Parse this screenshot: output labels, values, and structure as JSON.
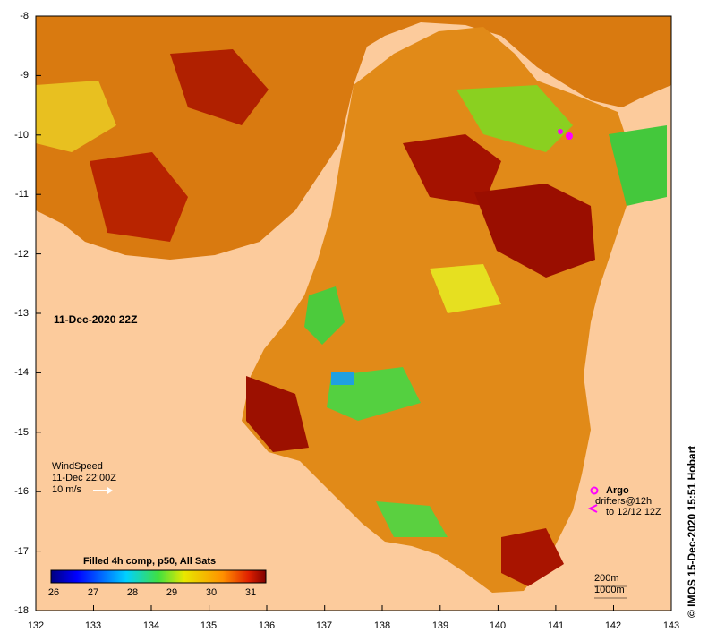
{
  "map": {
    "y_ticks": [
      "-8",
      "-9",
      "-10",
      "-11",
      "-12",
      "-13",
      "-14",
      "-15",
      "-16",
      "-17",
      "-18"
    ],
    "x_ticks": [
      "132",
      "133",
      "134",
      "135",
      "136",
      "137",
      "138",
      "139",
      "140",
      "141",
      "142",
      "143"
    ],
    "date_label": "11-Dec-2020 22Z",
    "wind": {
      "title": "WindSpeed",
      "time": "11-Dec 22:00Z",
      "scale": "10 m/s"
    },
    "legend": {
      "title": "Filled 4h comp, p50, All Sats",
      "ticks": [
        "26",
        "27",
        "28",
        "29",
        "30",
        "31"
      ]
    },
    "argo": {
      "argo_label": "Argo",
      "drifters_label": "drifters@12h",
      "drifters_to": "to 12/12 12Z"
    },
    "scale": {
      "contour_200": "200m",
      "contour_1000": "1000m"
    },
    "credit": "© IMOS 15-Dec-2020 15:51 Hobart",
    "colors": {
      "land": "#fccb9c",
      "sst_low": "#00007f",
      "sst_high": "#7f0000",
      "argo": "#ff00ff"
    }
  }
}
